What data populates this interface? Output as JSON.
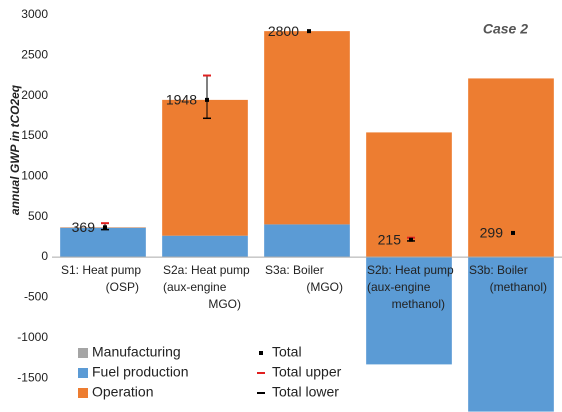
{
  "chart_data": {
    "type": "bar",
    "stacked": true,
    "title": "Case 2",
    "y_label": "annual GWP in tCO2eq",
    "categories": [
      [
        "S1: Heat pump",
        "(OSP)"
      ],
      [
        "S2a: Heat pump",
        "(aux-engine",
        "MGO)"
      ],
      [
        "S3a: Boiler",
        "(MGO)"
      ],
      [
        "S2b: Heat pump",
        "(aux-engine",
        "methanol)"
      ],
      [
        "S3b: Boiler",
        "(methanol)"
      ]
    ],
    "series": [
      {
        "name": "Manufacturing",
        "color": "#a5a5a5",
        "values": [
          4,
          5,
          5,
          5,
          5
        ]
      },
      {
        "name": "Fuel production",
        "color": "#5b9bd5",
        "values": [
          360,
          260,
          400,
          -1330,
          -1915
        ]
      },
      {
        "name": "Operation",
        "color": "#ed7d31",
        "values": [
          5,
          1683,
          2395,
          1540,
          2209
        ]
      }
    ],
    "total": {
      "name": "Total",
      "color": "#000000",
      "values": [
        369,
        1948,
        2800,
        215,
        299
      ]
    },
    "total_upper": {
      "name": "Total upper",
      "color": "#e02020",
      "values": [
        420,
        2250,
        null,
        240,
        null
      ]
    },
    "total_lower": {
      "name": "Total lower",
      "color": "#000000",
      "values": [
        340,
        1720,
        null,
        200,
        null
      ]
    },
    "ylim": [
      -1920,
      3000
    ],
    "yticks": [
      -1500,
      -1000,
      -500,
      0,
      500,
      1000,
      1500,
      2000,
      2500,
      3000
    ],
    "grid": false
  }
}
